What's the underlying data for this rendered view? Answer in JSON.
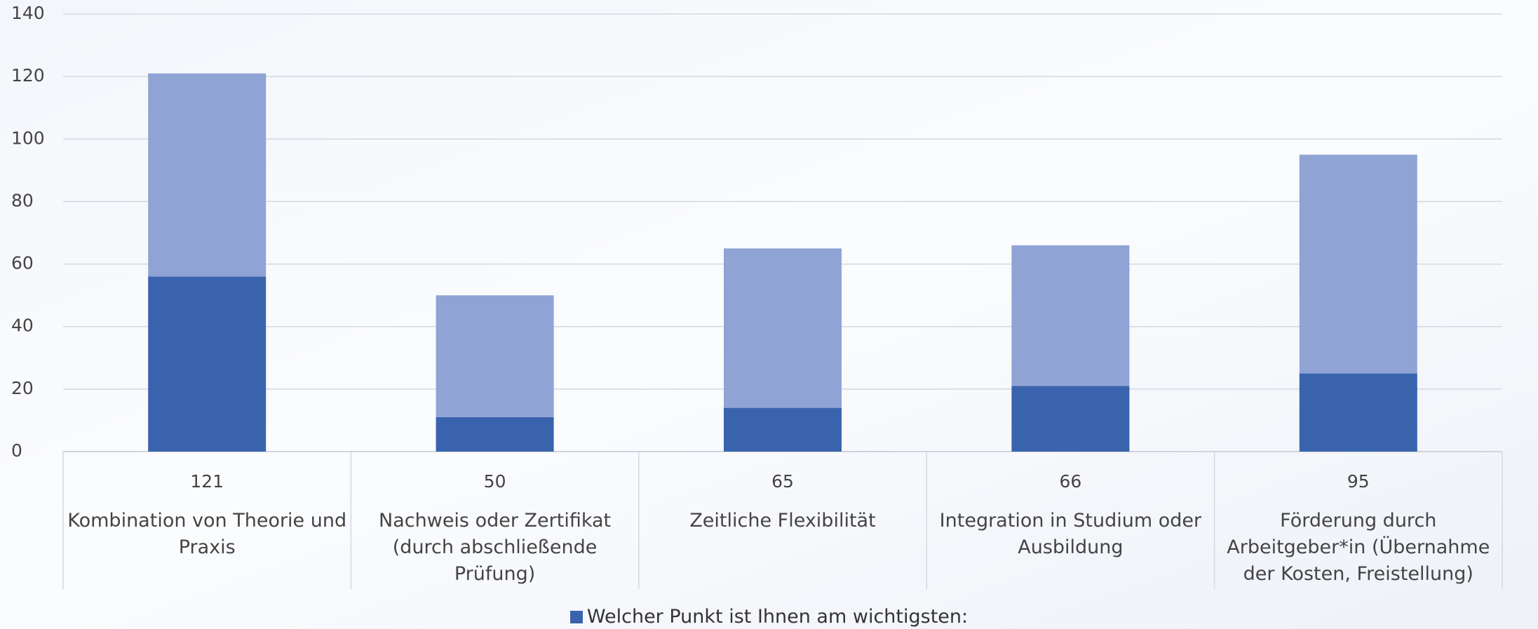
{
  "chart_data": {
    "type": "stacked_bar",
    "categories": [
      "Kombination von Theorie und Praxis",
      "Nachweis oder Zertifikat (durch abschließende Prüfung)",
      "Zeitliche Flexibilität",
      "Integration in Studium oder Ausbildung",
      "Förderung durch Arbeitgeber*in (Übernahme der Kosten, Freistellung)"
    ],
    "totals": [
      121,
      50,
      65,
      66,
      95
    ],
    "series": [
      {
        "name": "Welcher Punkt ist Ihnen am wichtigsten:",
        "color": "#3a63ad",
        "values": [
          56,
          11,
          14,
          21,
          25
        ]
      },
      {
        "color": "#8fa3d5",
        "values": [
          65,
          39,
          51,
          45,
          70
        ]
      }
    ],
    "ylim": [
      0,
      140
    ],
    "yticks": [
      0,
      20,
      40,
      60,
      80,
      100,
      120,
      140
    ],
    "grid": true,
    "legend": "bottom"
  }
}
